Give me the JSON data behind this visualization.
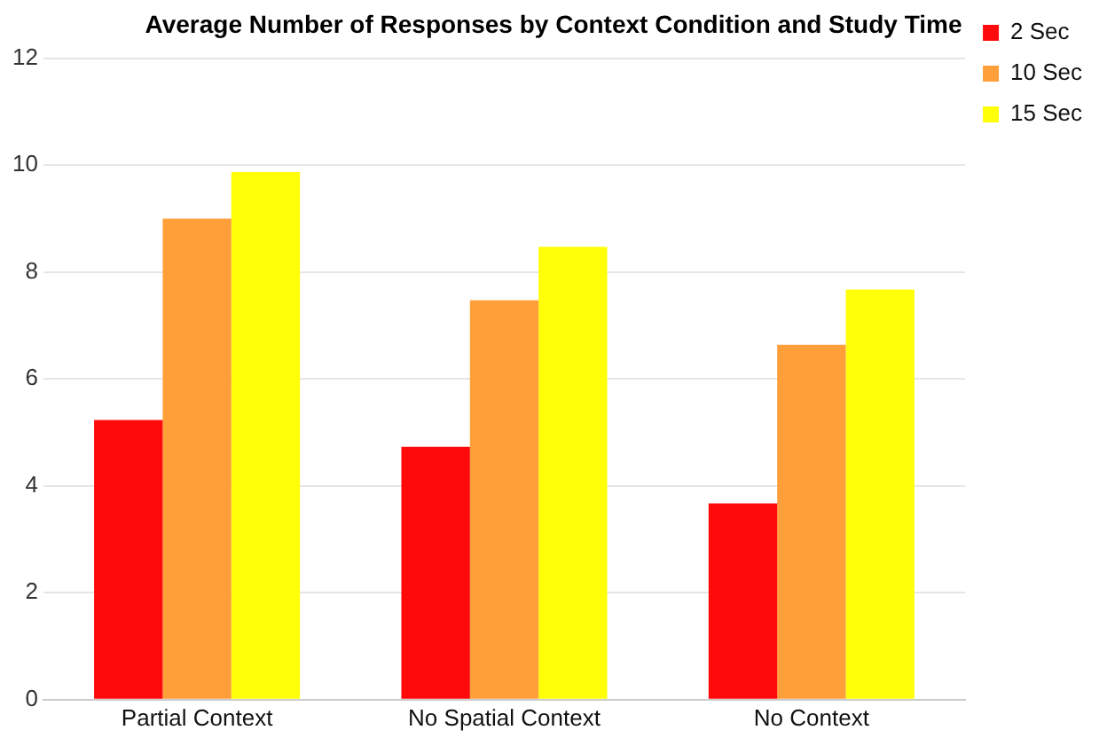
{
  "chart_data": {
    "type": "bar",
    "title": "Average Number of Responses by Context Condition and Study Time",
    "categories": [
      "Partial Context",
      "No Spatial Context",
      "No Context"
    ],
    "series": [
      {
        "name": "2 Sec",
        "color": "#ff0a0a",
        "values": [
          5.23,
          4.73,
          3.67
        ]
      },
      {
        "name": "10 Sec",
        "color": "#ff9f3a",
        "values": [
          9.0,
          7.47,
          6.64
        ]
      },
      {
        "name": "15 Sec",
        "color": "#ffff0a",
        "values": [
          9.87,
          8.47,
          7.67
        ]
      }
    ],
    "ylim": [
      0,
      12
    ],
    "yticks": [
      0,
      2,
      4,
      6,
      8,
      10,
      12
    ],
    "grid": "y",
    "legend": "top right"
  }
}
